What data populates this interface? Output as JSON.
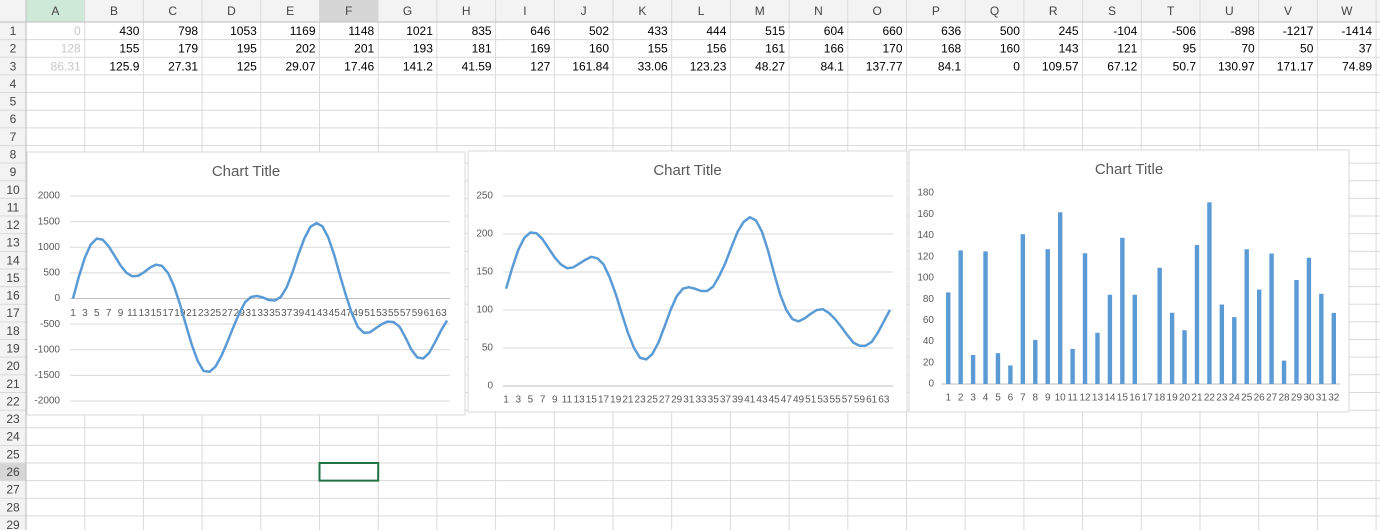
{
  "sheet": {
    "columns": [
      "A",
      "B",
      "C",
      "D",
      "E",
      "F",
      "G",
      "H",
      "I",
      "J",
      "K",
      "L",
      "M",
      "N",
      "O",
      "P",
      "Q",
      "R",
      "S",
      "T",
      "U",
      "V",
      "W"
    ],
    "rows": [
      1,
      2,
      3,
      4,
      5,
      6,
      7,
      8,
      9,
      10,
      11,
      12,
      13,
      14,
      15,
      16,
      17,
      18,
      19,
      20,
      21,
      22,
      23,
      24,
      25,
      26,
      27,
      28,
      29
    ],
    "cells": [
      [
        0,
        430,
        798,
        1053,
        1169,
        1148,
        1021,
        835,
        646,
        502,
        433,
        444,
        515,
        604,
        660,
        636,
        500,
        245,
        -104,
        -506,
        -898,
        -1217,
        -1414
      ],
      [
        128,
        155,
        179,
        195,
        202,
        201,
        193,
        181,
        169,
        160,
        155,
        156,
        161,
        166,
        170,
        168,
        160,
        143,
        121,
        95,
        70,
        50,
        37
      ],
      [
        86.31,
        125.9,
        27.31,
        125,
        29.07,
        17.46,
        141.2,
        41.59,
        127,
        161.84,
        33.06,
        123.23,
        48.27,
        84.1,
        137.77,
        84.1,
        0,
        109.57,
        67.12,
        50.7,
        130.97,
        171.17,
        74.89
      ]
    ]
  },
  "chart_data": [
    {
      "type": "line",
      "title": "Chart Title",
      "color": "#5b9bd5",
      "grid": true,
      "categories": [
        1,
        null,
        3,
        null,
        5,
        null,
        7,
        null,
        9,
        null,
        11,
        null,
        13,
        null,
        15,
        null,
        17,
        null,
        19,
        null,
        21,
        null,
        23,
        null,
        25,
        null,
        27,
        null,
        29,
        null,
        31,
        null,
        33,
        null,
        35,
        null,
        37,
        null,
        39,
        null,
        41,
        null,
        43,
        null,
        45,
        null,
        47,
        null,
        49,
        null,
        51,
        null,
        53,
        null,
        55,
        null,
        57,
        null,
        59,
        null,
        61,
        null,
        63,
        null
      ],
      "values": [
        0,
        430,
        798,
        1053,
        1169,
        1148,
        1021,
        835,
        646,
        502,
        433,
        444,
        515,
        604,
        660,
        636,
        500,
        245,
        -104,
        -506,
        -898,
        -1217,
        -1414,
        -1430,
        -1330,
        -1120,
        -850,
        -560,
        -290,
        -70,
        30,
        50,
        20,
        -30,
        -40,
        30,
        220,
        520,
        870,
        1180,
        1400,
        1470,
        1410,
        1190,
        850,
        440,
        50,
        -300,
        -560,
        -670,
        -660,
        -580,
        -500,
        -450,
        -460,
        -550,
        -760,
        -1000,
        -1150,
        -1170,
        -1060,
        -850,
        -620,
        -430
      ],
      "ylim": [
        -2000,
        2000
      ],
      "yticks": [
        -2000,
        -1500,
        -1000,
        -500,
        0,
        500,
        1000,
        1500,
        2000
      ]
    },
    {
      "type": "line",
      "title": "Chart Title",
      "color": "#5b9bd5",
      "grid": true,
      "categories": [
        1,
        null,
        3,
        null,
        5,
        null,
        7,
        null,
        9,
        null,
        11,
        null,
        13,
        null,
        15,
        null,
        17,
        null,
        19,
        null,
        21,
        null,
        23,
        null,
        25,
        null,
        27,
        null,
        29,
        null,
        31,
        null,
        33,
        null,
        35,
        null,
        37,
        null,
        39,
        null,
        41,
        null,
        43,
        null,
        45,
        null,
        47,
        null,
        49,
        null,
        51,
        null,
        53,
        null,
        55,
        null,
        57,
        null,
        59,
        null,
        61,
        null,
        63,
        null
      ],
      "values": [
        128,
        155,
        179,
        195,
        202,
        201,
        193,
        181,
        169,
        160,
        155,
        156,
        161,
        166,
        170,
        168,
        160,
        143,
        121,
        95,
        70,
        50,
        37,
        35,
        42,
        57,
        78,
        100,
        118,
        128,
        130,
        128,
        125,
        125,
        131,
        145,
        162,
        183,
        203,
        216,
        222,
        218,
        203,
        178,
        148,
        120,
        100,
        88,
        85,
        89,
        95,
        100,
        101,
        96,
        88,
        78,
        67,
        57,
        53,
        53,
        58,
        70,
        85,
        100
      ],
      "ylim": [
        0,
        250
      ],
      "yticks": [
        0,
        50,
        100,
        150,
        200,
        250
      ]
    },
    {
      "type": "bar",
      "title": "Chart Title",
      "color": "#5b9bd5",
      "grid": false,
      "categories": [
        1,
        2,
        3,
        4,
        5,
        6,
        7,
        8,
        9,
        10,
        11,
        12,
        13,
        14,
        15,
        16,
        17,
        18,
        19,
        20,
        21,
        22,
        23,
        24,
        25,
        26,
        27,
        28,
        29,
        30,
        31,
        32
      ],
      "values": [
        86.31,
        125.9,
        27.31,
        125,
        29.07,
        17.46,
        141.2,
        41.59,
        127,
        161.84,
        33.06,
        123.23,
        48.27,
        84.1,
        137.77,
        84.1,
        0,
        109.57,
        67.12,
        50.7,
        130.97,
        171.17,
        74.89,
        63,
        127,
        89,
        123,
        22,
        98,
        119,
        85,
        67
      ],
      "ylim": [
        0,
        180
      ],
      "yticks": [
        0,
        20,
        40,
        60,
        80,
        100,
        120,
        140,
        160,
        180
      ]
    }
  ]
}
